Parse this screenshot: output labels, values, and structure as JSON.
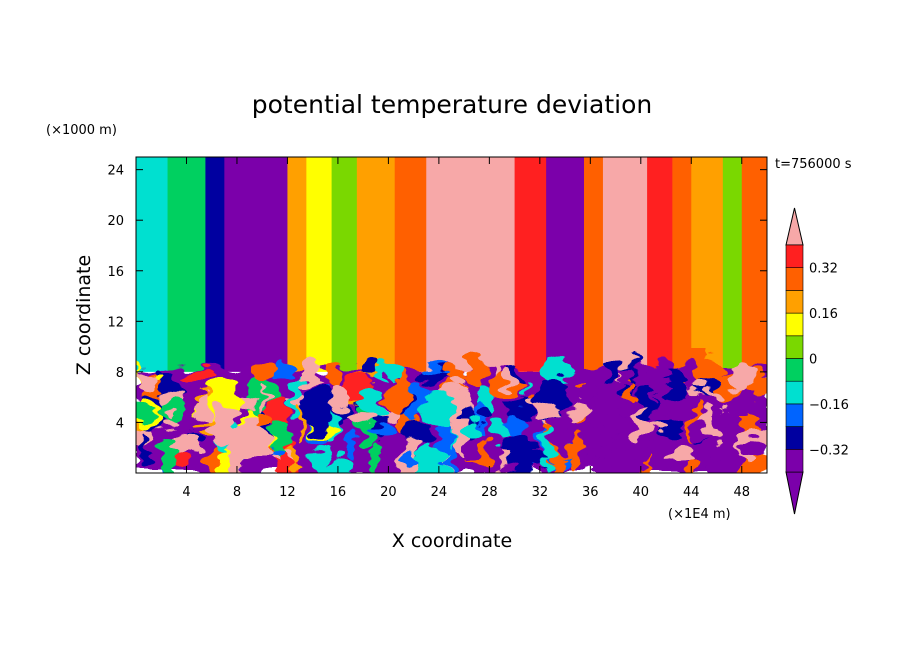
{
  "chart_data": {
    "type": "heatmap",
    "title": "potential temperature deviation",
    "xlabel": "X coordinate",
    "ylabel": "Z coordinate",
    "x_unit": "(×1E4 m)",
    "y_unit": "(×1000 m)",
    "time_label": "t=756000 s",
    "xlim": [
      0,
      50
    ],
    "ylim": [
      0,
      25
    ],
    "x_ticks": [
      4,
      8,
      12,
      16,
      20,
      24,
      28,
      32,
      36,
      40,
      44,
      48
    ],
    "y_ticks": [
      4,
      8,
      12,
      16,
      20,
      24
    ],
    "colorbar": {
      "levels": [
        -0.4,
        -0.32,
        -0.24,
        -0.16,
        -0.08,
        0,
        0.08,
        0.16,
        0.24,
        0.32,
        0.4
      ],
      "labels": [
        "-0.32",
        "-0.16",
        "0",
        "0.16",
        "0.32"
      ],
      "label_values": [
        -0.32,
        -0.16,
        0,
        0.16,
        0.32
      ],
      "colors": [
        "#7b00aa",
        "#7b00aa",
        "#0000a0",
        "#0064ff",
        "#00e0d0",
        "#00d060",
        "#7ad800",
        "#ffff00",
        "#ffa000",
        "#ff6000",
        "#ff2020",
        "#f7a8a8"
      ],
      "extend": "both"
    },
    "upper_layer_columns": [
      {
        "x": [
          0,
          2.5
        ],
        "value": -0.12
      },
      {
        "x": [
          2.5,
          5.5
        ],
        "value": -0.02
      },
      {
        "x": [
          5.5,
          7
        ],
        "value": -0.28
      },
      {
        "x": [
          7,
          12
        ],
        "value": -0.42
      },
      {
        "x": [
          12,
          13.5
        ],
        "value": 0.2
      },
      {
        "x": [
          13.5,
          15.5
        ],
        "value": 0.12
      },
      {
        "x": [
          15.5,
          17.5
        ],
        "value": 0.04
      },
      {
        "x": [
          17.5,
          20.5
        ],
        "value": 0.2
      },
      {
        "x": [
          20.5,
          23
        ],
        "value": 0.28
      },
      {
        "x": [
          23,
          30
        ],
        "value": 0.45
      },
      {
        "x": [
          30,
          32.5
        ],
        "value": 0.36
      },
      {
        "x": [
          32.5,
          35.5
        ],
        "value": -0.42
      },
      {
        "x": [
          35.5,
          37
        ],
        "value": 0.3
      },
      {
        "x": [
          37,
          40.5
        ],
        "value": 0.45
      },
      {
        "x": [
          40.5,
          42.5
        ],
        "value": 0.36
      },
      {
        "x": [
          42.5,
          44
        ],
        "value": 0.28
      },
      {
        "x": [
          44,
          46.5
        ],
        "value": 0.18
      },
      {
        "x": [
          46.5,
          48
        ],
        "value": 0.05
      },
      {
        "x": [
          48,
          50
        ],
        "value": 0.3
      }
    ],
    "boundary_height": 8
  }
}
